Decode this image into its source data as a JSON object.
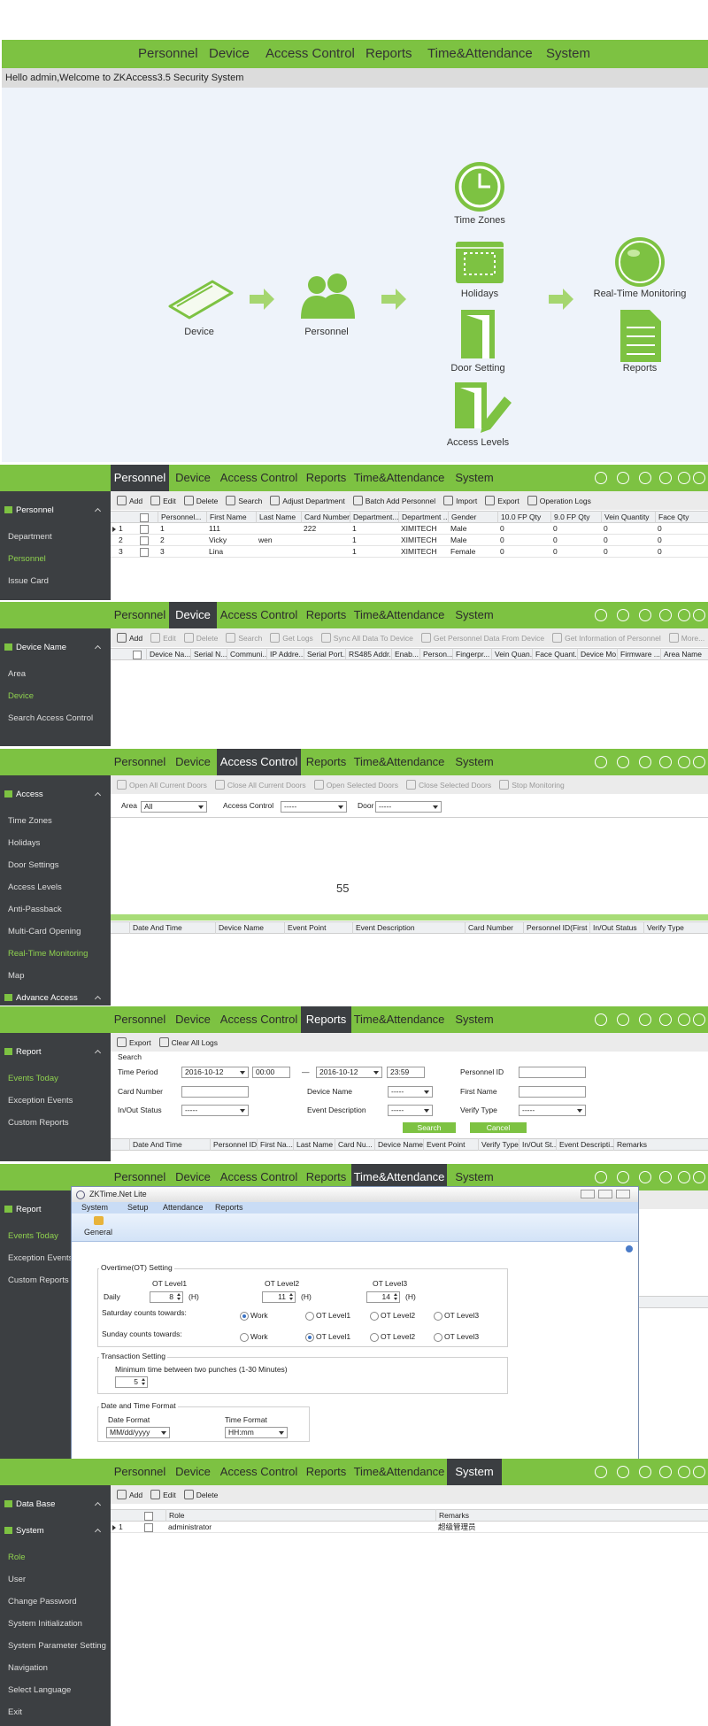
{
  "home": {
    "nav": [
      "Personnel",
      "Device",
      "Access Control",
      "Reports",
      "Time&Attendance",
      "System"
    ],
    "welcome": "Hello admin,Welcome to ZKAccess3.5 Security System",
    "flow": [
      "Device",
      "Personnel",
      "Time Zones",
      "Holidays",
      "Door Setting",
      "Access Levels",
      "Real-Time Monitoring",
      "Reports"
    ]
  },
  "tabs": [
    "Personnel",
    "Device",
    "Access Control",
    "Reports",
    "Time&Attendance",
    "System"
  ],
  "panels": [
    {
      "active": 0,
      "sidebar": [
        {
          "text": "Personnel",
          "group": true
        },
        {
          "text": "Department"
        },
        {
          "text": "Personnel",
          "selected": true
        },
        {
          "text": "Issue Card"
        }
      ],
      "toolbar": [
        {
          "text": "Add",
          "enabled": true
        },
        {
          "text": "Edit",
          "enabled": true
        },
        {
          "text": "Delete",
          "enabled": true
        },
        {
          "text": "Search",
          "enabled": true
        },
        {
          "text": "Adjust Department",
          "enabled": true
        },
        {
          "text": "Batch Add Personnel",
          "enabled": true
        },
        {
          "text": "Import",
          "enabled": true
        },
        {
          "text": "Export",
          "enabled": true
        },
        {
          "text": "Operation Logs",
          "enabled": true
        }
      ],
      "columns": [
        "Personnel...",
        "First Name",
        "Last Name",
        "Card Number",
        "Department...",
        "Department ...",
        "Gender",
        "10.0 FP Qty",
        "9.0 FP Qty",
        "Vein Quantity",
        "Face Qty"
      ],
      "rows": [
        [
          1,
          1,
          111,
          null,
          222,
          1,
          "XIMITECH",
          "Male",
          0,
          0,
          0,
          0
        ],
        [
          2,
          2,
          "Vicky",
          "wen",
          null,
          1,
          "XIMITECH",
          "Male",
          0,
          0,
          0,
          0
        ],
        [
          3,
          3,
          "Lina",
          null,
          null,
          1,
          "XIMITECH",
          "Female",
          0,
          0,
          0,
          0
        ]
      ]
    },
    {
      "active": 1,
      "sidebar": [
        {
          "text": "Device Name",
          "group": true
        },
        {
          "text": "Area"
        },
        {
          "text": "Device",
          "selected": true
        },
        {
          "text": "Search Access Control"
        }
      ],
      "toolbar": [
        {
          "text": "Add",
          "enabled": true
        },
        {
          "text": "Edit",
          "enabled": false
        },
        {
          "text": "Delete",
          "enabled": false
        },
        {
          "text": "Search",
          "enabled": false
        },
        {
          "text": "Get Logs",
          "enabled": false
        },
        {
          "text": "Sync All Data To Device",
          "enabled": false
        },
        {
          "text": "Get Personnel Data From Device",
          "enabled": false
        },
        {
          "text": "Get Information of Personnel",
          "enabled": false
        },
        {
          "text": "More...",
          "enabled": false
        }
      ],
      "columns": [
        "Device Na...",
        "Serial N...",
        "Communi...",
        "IP Addre...",
        "Serial Port...",
        "RS485 Addr...",
        "Enab...",
        "Person...",
        "Fingerpr...",
        "Vein Quan...",
        "Face Quant...",
        "Device Mo...",
        "Firmware ...",
        "Area Name"
      ]
    },
    {
      "active": 2,
      "sidebar": [
        {
          "text": "Access",
          "group": true
        },
        {
          "text": "Time Zones"
        },
        {
          "text": "Holidays"
        },
        {
          "text": "Door Settings"
        },
        {
          "text": "Access Levels"
        },
        {
          "text": "Anti-Passback"
        },
        {
          "text": "Multi-Card Opening"
        },
        {
          "text": "Real-Time Monitoring",
          "selected": true
        },
        {
          "text": "Map"
        },
        {
          "text": "Advance Access",
          "group": true,
          "bottom": true
        }
      ],
      "toolbar": [
        {
          "text": "Open All Current Doors",
          "enabled": false
        },
        {
          "text": "Close All Current Doors",
          "enabled": false
        },
        {
          "text": "Open Selected Doors",
          "enabled": false
        },
        {
          "text": "Close Selected Doors",
          "enabled": false
        },
        {
          "text": "Stop Monitoring",
          "enabled": false
        }
      ],
      "filters": [
        {
          "label": "Area",
          "value": "All"
        },
        {
          "label": "Access Control",
          "value": "-----"
        },
        {
          "label": "Door",
          "value": "-----"
        }
      ],
      "count": 55,
      "columns": [
        "Date And Time",
        "Device Name",
        "Event Point",
        "Event Description",
        "Card Number",
        "Personnel ID(First ...",
        "In/Out Status",
        "Verify Type"
      ]
    },
    {
      "active": 3,
      "sidebar": [
        {
          "text": "Report",
          "group": true
        },
        {
          "text": "Events Today",
          "selected": true
        },
        {
          "text": "Exception Events"
        },
        {
          "text": "Custom Reports"
        }
      ],
      "toolbar": [
        {
          "text": "Export",
          "enabled": true
        },
        {
          "text": "Clear All Logs",
          "enabled": true
        }
      ],
      "search": {
        "title": "Search",
        "time_period": {
          "label": "Time Period",
          "from_date": "2016-10-12",
          "from_time": "00:00",
          "separator": "—",
          "to_date": "2016-10-12",
          "to_time": "23:59"
        },
        "fields": [
          {
            "label": "Personnel ID",
            "value": null,
            "select": false
          },
          {
            "label": "Card Number",
            "value": null,
            "select": false
          },
          {
            "label": "Device Name",
            "value": "-----",
            "select": true
          },
          {
            "label": "First Name",
            "value": null,
            "select": false
          },
          {
            "label": "In/Out Status",
            "value": "-----",
            "select": true
          },
          {
            "label": "Event Description",
            "value": "-----",
            "select": true
          },
          {
            "label": "Verify Type",
            "value": "-----",
            "select": true
          }
        ],
        "buttons": [
          "Search",
          "Cancel"
        ]
      },
      "columns": [
        "Date And Time",
        "Personnel ID",
        "First Na...",
        "Last Name",
        "Card Nu...",
        "Device Name",
        "Event Point",
        "Verify Type",
        "In/Out St...",
        "Event Descripti...",
        "Remarks"
      ]
    },
    {
      "active": 4,
      "sidebar": [
        {
          "text": "Report",
          "group": true
        },
        {
          "text": "Events Today",
          "selected": true
        },
        {
          "text": "Exception Events"
        },
        {
          "text": "Custom Reports"
        }
      ],
      "dialog": {
        "title": "ZKTime.Net Lite",
        "menu": [
          "System",
          "Setup",
          "Attendance",
          "Reports"
        ],
        "tool": "General",
        "ot": {
          "title": "Overtime(OT) Setting",
          "levels": [
            "OT Level1",
            "OT Level2",
            "OT Level3"
          ],
          "daily_label": "Daily",
          "daily": [
            8,
            11,
            14
          ],
          "unit": "(H)",
          "options": [
            "Work",
            "OT Level1",
            "OT Level2",
            "OT Level3"
          ],
          "rows": [
            {
              "label": "Saturday counts towards:",
              "selected": 0
            },
            {
              "label": "Sunday counts towards:",
              "selected": 1
            }
          ]
        },
        "transaction": {
          "title": "Transaction Setting",
          "label": "Minimum time between two punches (1-30 Minutes)",
          "value": 5
        },
        "format": {
          "title": "Date and Time Format",
          "date_label": "Date Format",
          "date": "MM/dd/yyyy",
          "time_label": "Time Format",
          "time": "HH:mm"
        }
      }
    },
    {
      "active": 5,
      "sidebar": [
        {
          "text": "Data Base",
          "group": true
        },
        {
          "text": "System",
          "group": true
        },
        {
          "text": "Role",
          "selected": true
        },
        {
          "text": "User"
        },
        {
          "text": "Change Password"
        },
        {
          "text": "System Initialization"
        },
        {
          "text": "System Parameter Setting"
        },
        {
          "text": "Navigation"
        },
        {
          "text": "Select Language"
        },
        {
          "text": "Exit"
        }
      ],
      "toolbar": [
        {
          "text": "Add",
          "enabled": true
        },
        {
          "text": "Edit",
          "enabled": true
        },
        {
          "text": "Delete",
          "enabled": true
        }
      ],
      "columns": [
        "Role",
        "Remarks"
      ],
      "rows": [
        [
          1,
          "administrator",
          "超级管理员"
        ]
      ]
    }
  ]
}
